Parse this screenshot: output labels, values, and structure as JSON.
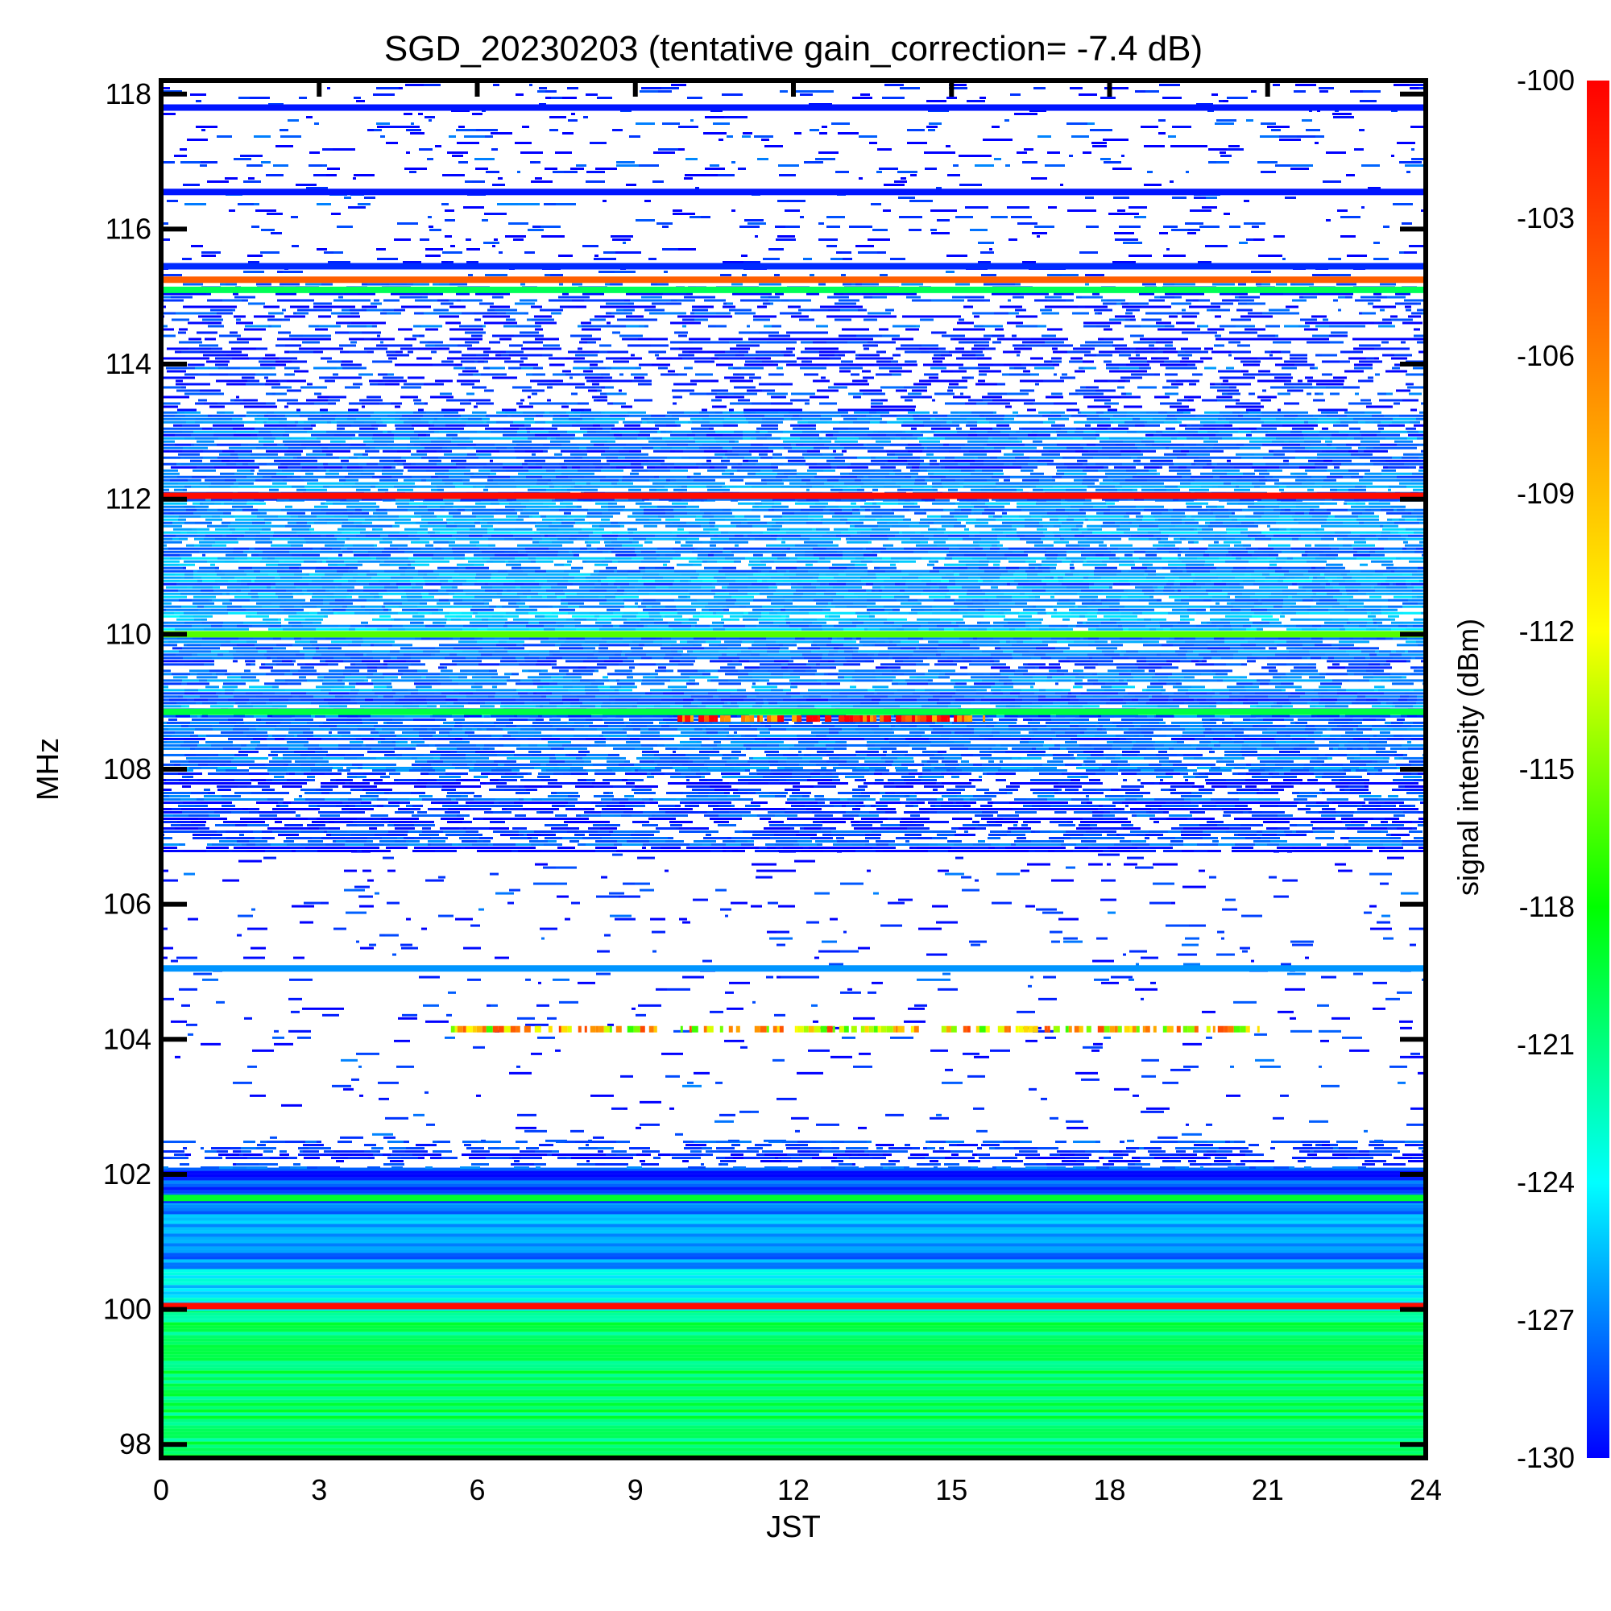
{
  "chart_data": {
    "type": "heatmap",
    "title": "SGD_20230203 (tentative gain_correction= -7.4 dB)",
    "xlabel": "JST",
    "ylabel": "MHz",
    "colorbar_label": "signal intensity (dBm)",
    "xlim": [
      0,
      24
    ],
    "ylim": [
      97.8,
      118.2
    ],
    "x_ticks": [
      0,
      3,
      6,
      9,
      12,
      15,
      18,
      21,
      24
    ],
    "y_ticks": [
      98,
      100,
      102,
      104,
      106,
      108,
      110,
      112,
      114,
      116,
      118
    ],
    "colorbar_range": [
      -130,
      -100
    ],
    "colorbar_ticks": [
      -100,
      -103,
      -106,
      -109,
      -112,
      -115,
      -118,
      -121,
      -124,
      -127,
      -130
    ],
    "colormap": [
      "#0000ff",
      "#00ffff",
      "#00ff00",
      "#ffff00",
      "#ff7f00",
      "#ff0000"
    ],
    "background_color": "#ffffff",
    "frequency_bands": [
      {
        "from": 97.8,
        "to": 100.0,
        "dbm": -120.5
      },
      {
        "from": 100.0,
        "to": 100.6,
        "dbm": -124.5
      },
      {
        "from": 100.6,
        "to": 101.6,
        "dbm": -126.5
      },
      {
        "from": 101.6,
        "to": 102.1,
        "dbm": -128.5
      },
      {
        "from": 102.1,
        "to": 102.5,
        "dbm": -129.0,
        "density": 0.55
      },
      {
        "from": 102.5,
        "to": 104.9,
        "dbm": -129.2,
        "density": 0.05
      },
      {
        "from": 104.9,
        "to": 106.8,
        "dbm": -129.2,
        "density": 0.06
      },
      {
        "from": 106.8,
        "to": 108.0,
        "dbm": -128.6,
        "density": 0.65
      },
      {
        "from": 108.0,
        "to": 108.8,
        "dbm": -128.0,
        "density": 0.8
      },
      {
        "from": 108.8,
        "to": 110.0,
        "dbm": -127.4,
        "density": 0.92
      },
      {
        "from": 110.0,
        "to": 112.0,
        "dbm": -126.6,
        "density": 0.95
      },
      {
        "from": 112.0,
        "to": 113.3,
        "dbm": -127.8,
        "density": 0.82
      },
      {
        "from": 113.3,
        "to": 115.2,
        "dbm": -129.0,
        "density": 0.42
      },
      {
        "from": 115.3,
        "to": 118.2,
        "dbm": -129.3,
        "density": 0.12
      }
    ],
    "persistent_lines": [
      {
        "freq": 100.05,
        "dbm": -100.5
      },
      {
        "freq": 101.65,
        "dbm": -119.0
      },
      {
        "freq": 105.05,
        "dbm": -126.5
      },
      {
        "freq": 108.85,
        "dbm": -119.5
      },
      {
        "freq": 110.0,
        "dbm": -116.0
      },
      {
        "freq": 112.05,
        "dbm": -100.5
      },
      {
        "freq": 115.1,
        "dbm": -120.0
      },
      {
        "freq": 115.25,
        "dbm": -104.5
      },
      {
        "freq": 115.45,
        "dbm": -129.0
      },
      {
        "freq": 116.55,
        "dbm": -129.5
      },
      {
        "freq": 117.8,
        "dbm": -129.5
      }
    ],
    "intermittent_lines": [
      {
        "freq": 104.15,
        "x_from": 5.5,
        "x_to": 21.0,
        "dbm": -110.0
      },
      {
        "freq": 108.75,
        "x_from": 9.8,
        "x_to": 15.8,
        "dbm": -102.0
      }
    ]
  }
}
